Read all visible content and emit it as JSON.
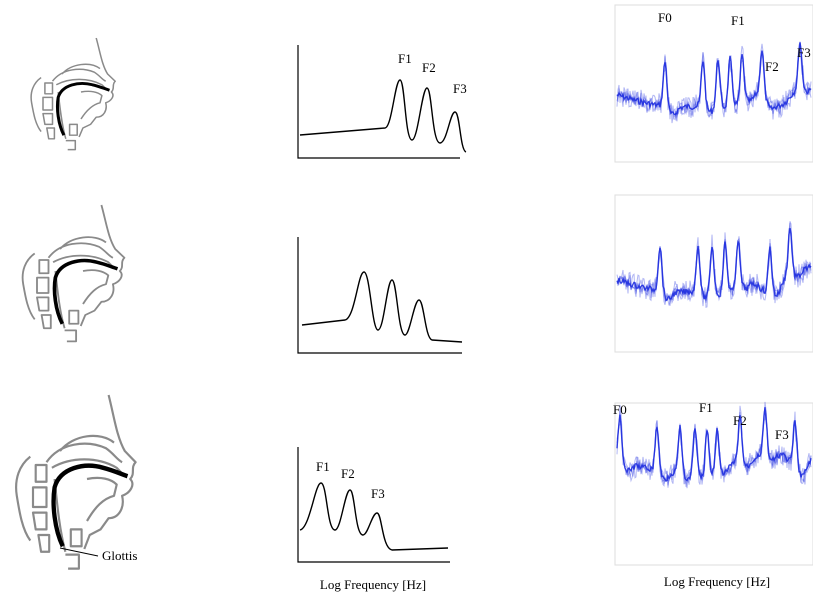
{
  "rows": [
    {
      "envelope_labels": [
        "F1",
        "F2",
        "F3"
      ],
      "spectrum_labels": [
        "F0",
        "F1",
        "F2",
        "F3"
      ]
    },
    {
      "envelope_labels": [],
      "spectrum_labels": []
    },
    {
      "envelope_labels": [
        "F1",
        "F2",
        "F3"
      ],
      "spectrum_labels": [
        "F0",
        "F1",
        "F2",
        "F3"
      ],
      "tract_label": "Glottis"
    }
  ],
  "envelope_axis_label": "Log Frequency [Hz]",
  "spectrum_axis_label": "Log Frequency [Hz]"
}
